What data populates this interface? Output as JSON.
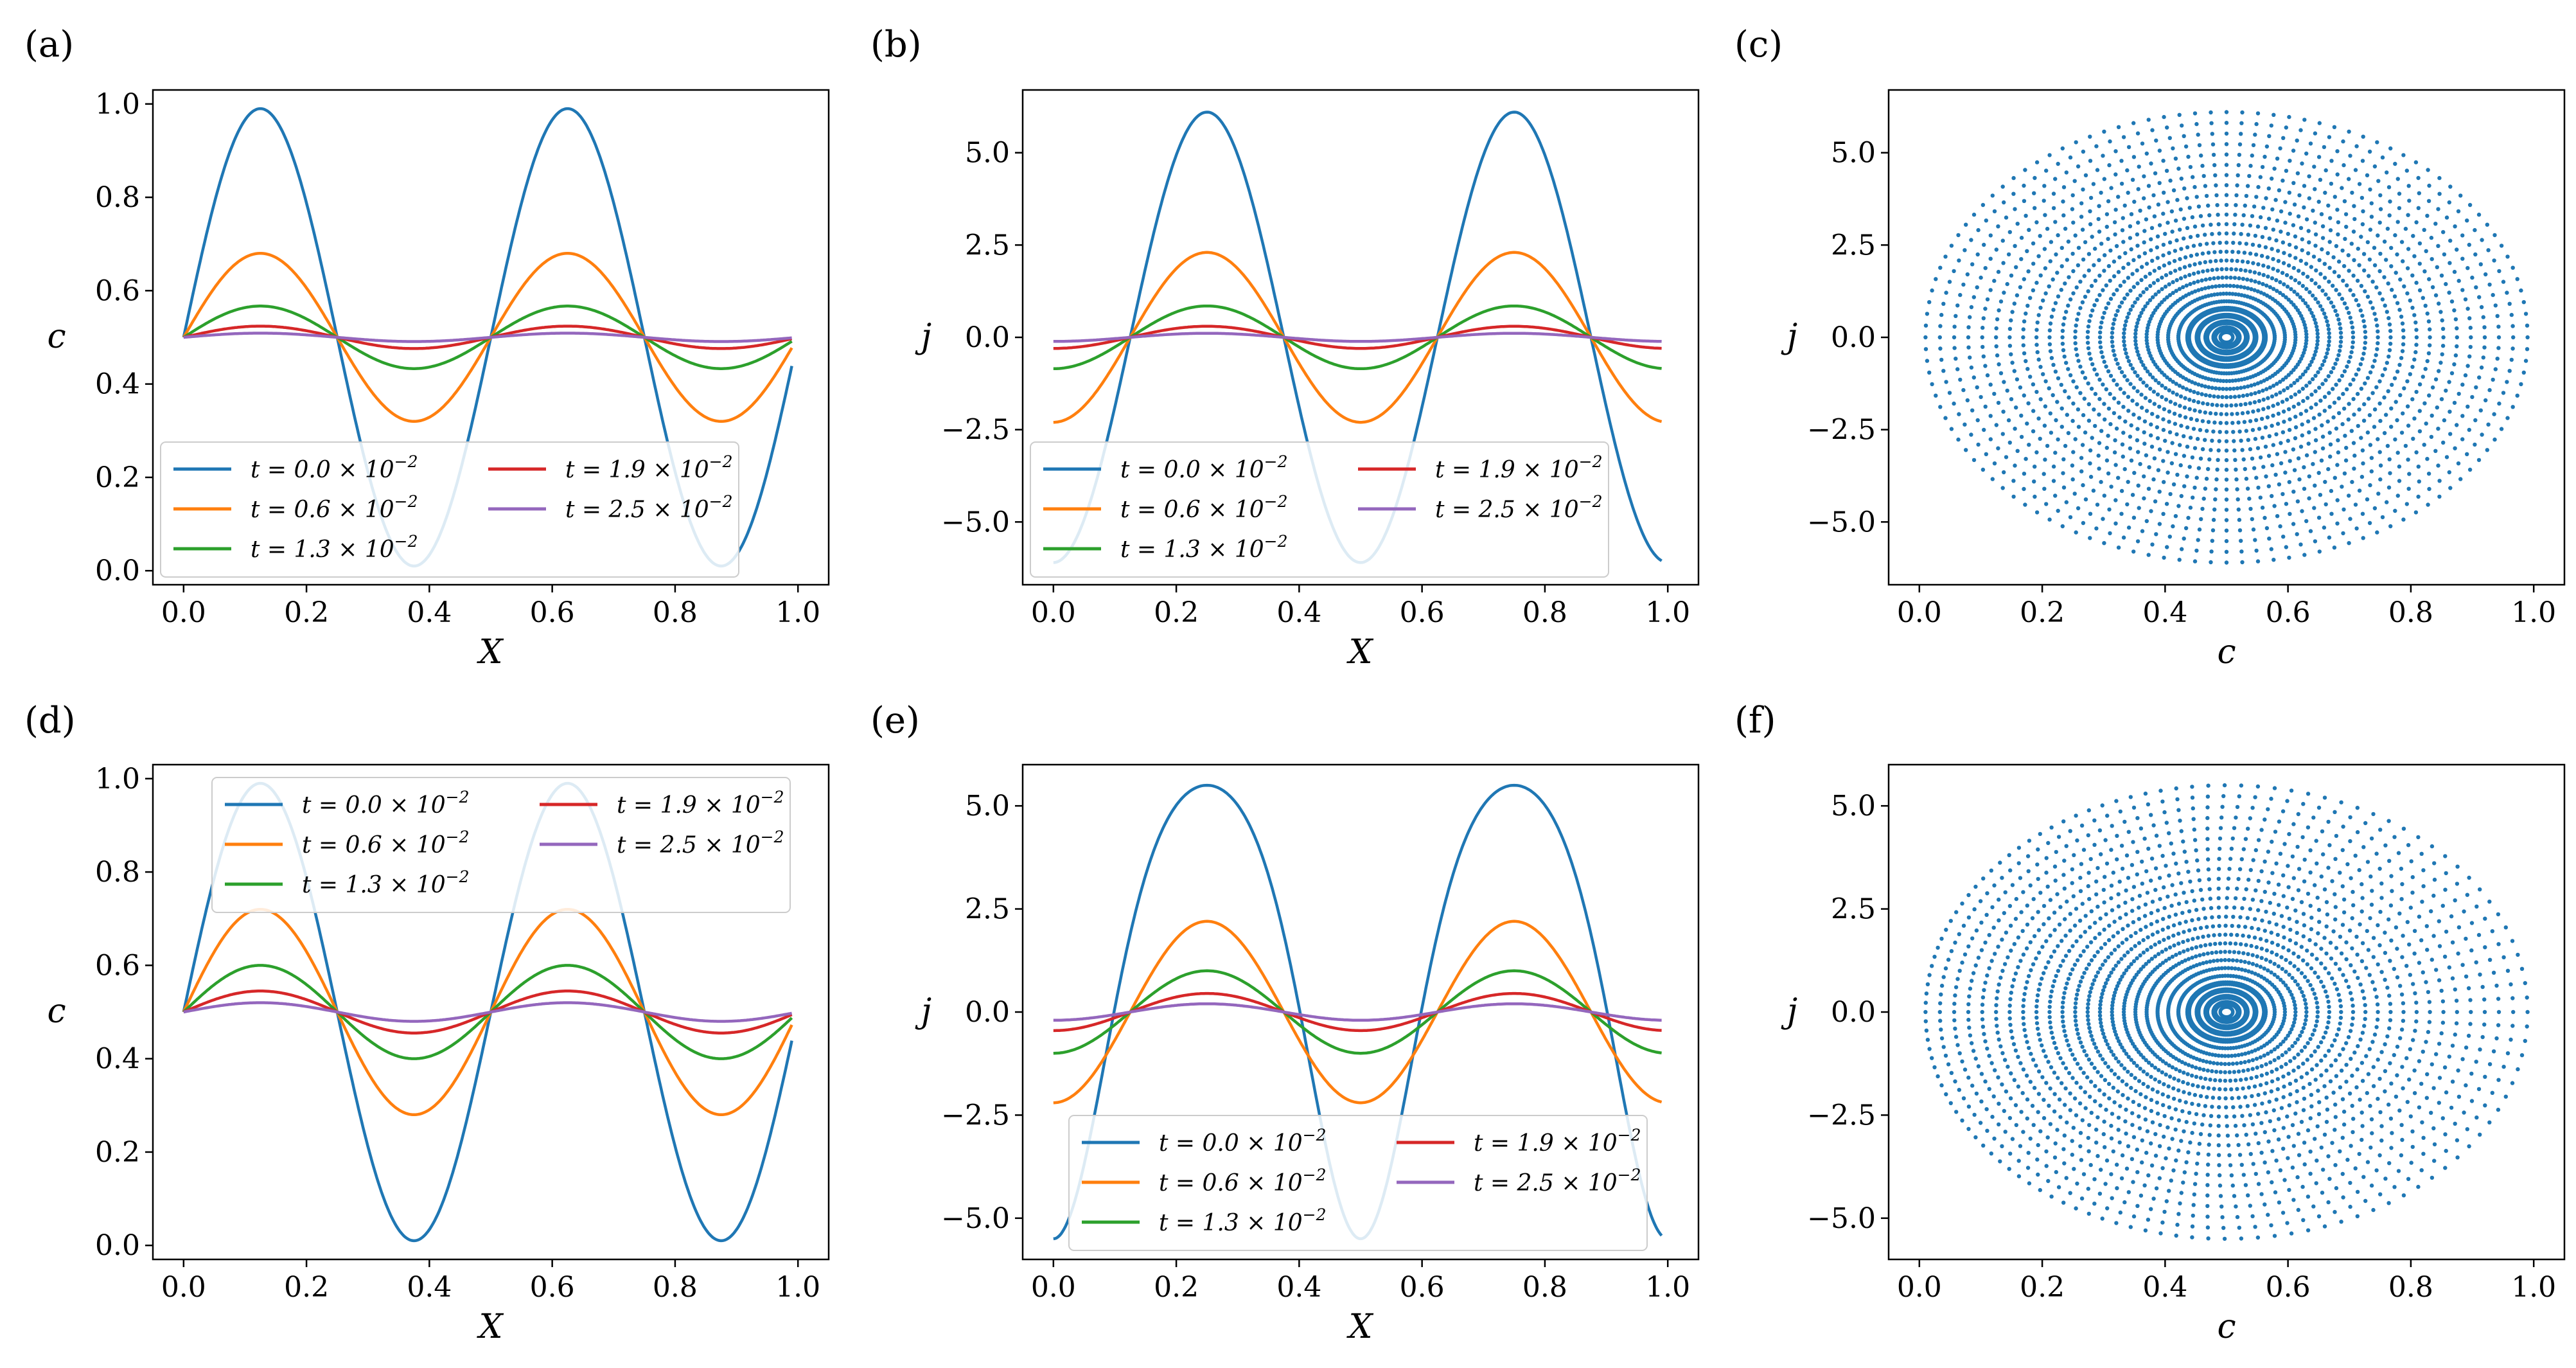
{
  "figure": {
    "panel_labels": [
      "(a)",
      "(b)",
      "(c)",
      "(d)",
      "(e)",
      "(f)"
    ]
  },
  "chart_data": [
    {
      "panel": "(a)",
      "type": "line",
      "title": "",
      "xlabel": "X",
      "ylabel": "c",
      "xlim": [
        -0.05,
        1.05
      ],
      "ylim": [
        -0.03,
        1.03
      ],
      "xticks": [
        0.0,
        0.2,
        0.4,
        0.6,
        0.8,
        1.0
      ],
      "xtick_labels": [
        "0.0",
        "0.2",
        "0.4",
        "0.6",
        "0.8",
        "1.0"
      ],
      "yticks": [
        0.0,
        0.2,
        0.4,
        0.6,
        0.8,
        1.0
      ],
      "ytick_labels": [
        "0.0",
        "0.2",
        "0.4",
        "0.6",
        "0.8",
        "1.0"
      ],
      "legend": {
        "placement": "lower-left",
        "columns": 2
      },
      "curve": "c",
      "series": [
        {
          "name": "t = 0.0 × 10^-2",
          "base": "t = 0.0 × 10",
          "exp": "−2",
          "color": "#1f77b4",
          "amplitude": 0.49,
          "skew": 0.0
        },
        {
          "name": "t = 0.6 × 10^-2",
          "base": "t = 0.6 × 10",
          "exp": "−2",
          "color": "#ff7f0e",
          "amplitude": 0.18,
          "skew": 0.0
        },
        {
          "name": "t = 1.3 × 10^-2",
          "base": "t = 1.3 × 10",
          "exp": "−2",
          "color": "#2ca02c",
          "amplitude": 0.067,
          "skew": 0.0
        },
        {
          "name": "t = 1.9 × 10^-2",
          "base": "t = 1.9 × 10",
          "exp": "−2",
          "color": "#d62728",
          "amplitude": 0.024,
          "skew": 0.0
        },
        {
          "name": "t = 2.5 × 10^-2",
          "base": "t = 2.5 × 10",
          "exp": "−2",
          "color": "#9467bd",
          "amplitude": 0.009,
          "skew": 0.0
        }
      ]
    },
    {
      "panel": "(b)",
      "type": "line",
      "title": "",
      "xlabel": "X",
      "ylabel": "j",
      "xlim": [
        -0.05,
        1.05
      ],
      "ylim": [
        -6.7,
        6.7
      ],
      "xticks": [
        0.0,
        0.2,
        0.4,
        0.6,
        0.8,
        1.0
      ],
      "xtick_labels": [
        "0.0",
        "0.2",
        "0.4",
        "0.6",
        "0.8",
        "1.0"
      ],
      "yticks": [
        -5.0,
        -2.5,
        0.0,
        2.5,
        5.0
      ],
      "ytick_labels": [
        "−5.0",
        "−2.5",
        "0.0",
        "2.5",
        "5.0"
      ],
      "legend": {
        "placement": "lower-left",
        "columns": 2
      },
      "curve": "j",
      "series": [
        {
          "name": "t = 0.0 × 10^-2",
          "base": "t = 0.0 × 10",
          "exp": "−2",
          "color": "#1f77b4",
          "amplitude": 6.1,
          "skew": 0.0
        },
        {
          "name": "t = 0.6 × 10^-2",
          "base": "t = 0.6 × 10",
          "exp": "−2",
          "color": "#ff7f0e",
          "amplitude": 2.3,
          "skew": 0.0
        },
        {
          "name": "t = 1.3 × 10^-2",
          "base": "t = 1.3 × 10",
          "exp": "−2",
          "color": "#2ca02c",
          "amplitude": 0.85,
          "skew": 0.0
        },
        {
          "name": "t = 1.9 × 10^-2",
          "base": "t = 1.9 × 10",
          "exp": "−2",
          "color": "#d62728",
          "amplitude": 0.3,
          "skew": 0.0
        },
        {
          "name": "t = 2.5 × 10^-2",
          "base": "t = 2.5 × 10",
          "exp": "−2",
          "color": "#9467bd",
          "amplitude": 0.11,
          "skew": 0.0
        }
      ]
    },
    {
      "panel": "(c)",
      "type": "scatter",
      "title": "",
      "xlabel": "c",
      "ylabel": "j",
      "xlim": [
        -0.05,
        1.05
      ],
      "ylim": [
        -6.7,
        6.7
      ],
      "xticks": [
        0.0,
        0.2,
        0.4,
        0.6,
        0.8,
        1.0
      ],
      "xtick_labels": [
        "0.0",
        "0.2",
        "0.4",
        "0.6",
        "0.8",
        "1.0"
      ],
      "yticks": [
        -5.0,
        -2.5,
        0.0,
        2.5,
        5.0
      ],
      "ytick_labels": [
        "−5.0",
        "−2.5",
        "0.0",
        "2.5",
        "5.0"
      ],
      "color": "#1f77b4",
      "phase": {
        "center_c": 0.5,
        "center_j": 0.0,
        "radius_c": 0.49,
        "radius_j": 6.1,
        "skew": 0.0,
        "rays": 120,
        "points_per_ray": 26
      }
    },
    {
      "panel": "(d)",
      "type": "line",
      "title": "",
      "xlabel": "X",
      "ylabel": "c",
      "xlim": [
        -0.05,
        1.05
      ],
      "ylim": [
        -0.03,
        1.03
      ],
      "xticks": [
        0.0,
        0.2,
        0.4,
        0.6,
        0.8,
        1.0
      ],
      "xtick_labels": [
        "0.0",
        "0.2",
        "0.4",
        "0.6",
        "0.8",
        "1.0"
      ],
      "yticks": [
        0.0,
        0.2,
        0.4,
        0.6,
        0.8,
        1.0
      ],
      "ytick_labels": [
        "0.0",
        "0.2",
        "0.4",
        "0.6",
        "0.8",
        "1.0"
      ],
      "legend": {
        "placement": "upper-center",
        "columns": 2
      },
      "curve": "c",
      "series": [
        {
          "name": "t = 0.0 × 10^-2",
          "base": "t = 0.0 × 10",
          "exp": "−2",
          "color": "#1f77b4",
          "amplitude": 0.49,
          "skew": 0.0
        },
        {
          "name": "t = 0.6 × 10^-2",
          "base": "t = 0.6 × 10",
          "exp": "−2",
          "color": "#ff7f0e",
          "amplitude": 0.22,
          "skew": 0.0
        },
        {
          "name": "t = 1.3 × 10^-2",
          "base": "t = 1.3 × 10",
          "exp": "−2",
          "color": "#2ca02c",
          "amplitude": 0.1,
          "skew": 0.0
        },
        {
          "name": "t = 1.9 × 10^-2",
          "base": "t = 1.9 × 10",
          "exp": "−2",
          "color": "#d62728",
          "amplitude": 0.045,
          "skew": 0.0
        },
        {
          "name": "t = 2.5 × 10^-2",
          "base": "t = 2.5 × 10",
          "exp": "−2",
          "color": "#9467bd",
          "amplitude": 0.02,
          "skew": 0.0
        }
      ]
    },
    {
      "panel": "(e)",
      "type": "line",
      "title": "",
      "xlabel": "X",
      "ylabel": "j",
      "xlim": [
        -0.05,
        1.05
      ],
      "ylim": [
        -6.0,
        6.0
      ],
      "xticks": [
        0.0,
        0.2,
        0.4,
        0.6,
        0.8,
        1.0
      ],
      "xtick_labels": [
        "0.0",
        "0.2",
        "0.4",
        "0.6",
        "0.8",
        "1.0"
      ],
      "yticks": [
        -5.0,
        -2.5,
        0.0,
        2.5,
        5.0
      ],
      "ytick_labels": [
        "−5.0",
        "−2.5",
        "0.0",
        "2.5",
        "5.0"
      ],
      "legend": {
        "placement": "lower-center",
        "columns": 2
      },
      "curve": "j",
      "series": [
        {
          "name": "t = 0.0 × 10^-2",
          "base": "t = 0.0 × 10",
          "exp": "−2",
          "color": "#1f77b4",
          "amplitude": 5.5,
          "skew": 0.35
        },
        {
          "name": "t = 0.6 × 10^-2",
          "base": "t = 0.6 × 10",
          "exp": "−2",
          "color": "#ff7f0e",
          "amplitude": 2.2,
          "skew": 0.0
        },
        {
          "name": "t = 1.3 × 10^-2",
          "base": "t = 1.3 × 10",
          "exp": "−2",
          "color": "#2ca02c",
          "amplitude": 1.0,
          "skew": 0.0
        },
        {
          "name": "t = 1.9 × 10^-2",
          "base": "t = 1.9 × 10",
          "exp": "−2",
          "color": "#d62728",
          "amplitude": 0.45,
          "skew": 0.0
        },
        {
          "name": "t = 2.5 × 10^-2",
          "base": "t = 2.5 × 10",
          "exp": "−2",
          "color": "#9467bd",
          "amplitude": 0.2,
          "skew": 0.0
        }
      ]
    },
    {
      "panel": "(f)",
      "type": "scatter",
      "title": "",
      "xlabel": "c",
      "ylabel": "j",
      "xlim": [
        -0.05,
        1.05
      ],
      "ylim": [
        -6.0,
        6.0
      ],
      "xticks": [
        0.0,
        0.2,
        0.4,
        0.6,
        0.8,
        1.0
      ],
      "xtick_labels": [
        "0.0",
        "0.2",
        "0.4",
        "0.6",
        "0.8",
        "1.0"
      ],
      "yticks": [
        -5.0,
        -2.5,
        0.0,
        2.5,
        5.0
      ],
      "ytick_labels": [
        "−5.0",
        "−2.5",
        "0.0",
        "2.5",
        "5.0"
      ],
      "color": "#1f77b4",
      "phase": {
        "center_c": 0.5,
        "center_j": 0.0,
        "radius_c": 0.49,
        "radius_j": 5.5,
        "skew": 0.35,
        "rays": 120,
        "points_per_ray": 26
      }
    }
  ]
}
